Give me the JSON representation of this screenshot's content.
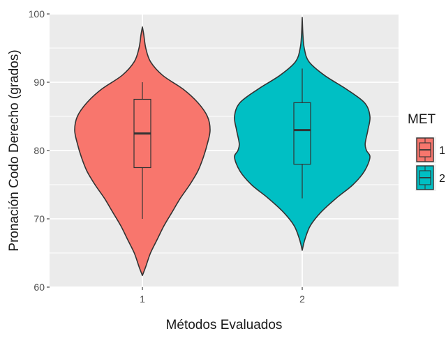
{
  "chart_data": {
    "type": "violin",
    "xlabel": "Métodos Evaluados",
    "ylabel": "Pronación Codo Derecho (grados)",
    "categories": [
      "1",
      "2"
    ],
    "ylim": [
      60,
      100
    ],
    "yticks": [
      60,
      70,
      80,
      90,
      100
    ],
    "grid": true,
    "background": "#ebebeb",
    "legend": {
      "title": "MET",
      "position": "right",
      "entries": [
        {
          "label": "1",
          "color": "#f8766d"
        },
        {
          "label": "2",
          "color": "#00bfc4"
        }
      ]
    },
    "series": [
      {
        "category": "1",
        "color": "#f8766d",
        "violin": {
          "y": [
            61.7,
            63,
            65,
            67,
            69,
            71,
            73,
            75,
            77,
            79,
            81,
            83,
            85,
            87,
            89,
            91,
            93,
            95,
            97,
            98.1
          ],
          "width": [
            0,
            0.05,
            0.12,
            0.22,
            0.32,
            0.44,
            0.56,
            0.7,
            0.82,
            0.9,
            0.96,
            1.0,
            0.96,
            0.82,
            0.6,
            0.3,
            0.12,
            0.05,
            0.02,
            0
          ]
        },
        "box": {
          "min": 70,
          "q1": 77.5,
          "median": 82.5,
          "q3": 87.5,
          "max": 90
        }
      },
      {
        "category": "2",
        "color": "#00bfc4",
        "violin": {
          "y": [
            65.4,
            67,
            69,
            71,
            73,
            75,
            77,
            79,
            80,
            81,
            83,
            85,
            87,
            89,
            91,
            93,
            95,
            97,
            99.5
          ],
          "width": [
            0,
            0.04,
            0.12,
            0.28,
            0.5,
            0.75,
            0.92,
            1.0,
            0.95,
            0.93,
            0.97,
            1.0,
            0.92,
            0.65,
            0.33,
            0.1,
            0.03,
            0.01,
            0
          ]
        },
        "box": {
          "min": 73,
          "q1": 78,
          "median": 83,
          "q3": 87,
          "max": 92
        }
      }
    ]
  }
}
